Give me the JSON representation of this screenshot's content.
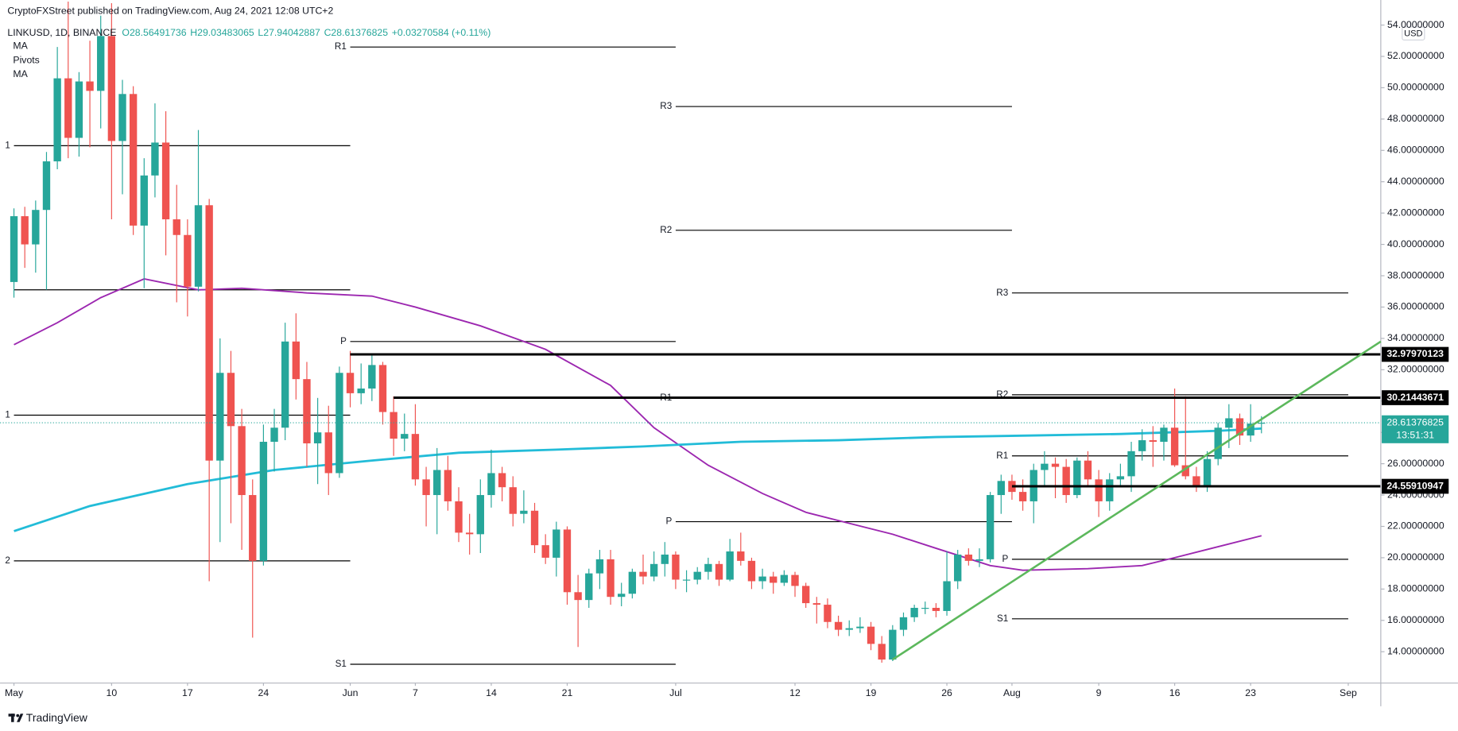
{
  "header": {
    "publisher": "CryptoFXStreet published on TradingView.com, Aug 24, 2021 12:08 UTC+2",
    "symbol": "LINKUSD, 1D, BINANCE",
    "ohlc": [
      "O28.56491736",
      "H29.03483065",
      "L27.94042887",
      "C28.61376825",
      "+0.03270584 (+0.11%)"
    ]
  },
  "footer": {
    "brand": "TradingView"
  },
  "chart_data": {
    "type": "candlestick",
    "up_color": "#26a69a",
    "down_color": "#ef5350",
    "currency": "USD",
    "xlim": [
      "2021-04-30",
      "2021-09-04"
    ],
    "ylim": [
      12,
      55.6
    ],
    "xticks": [
      {
        "value": "2021-05-01",
        "label": "May"
      },
      {
        "value": "2021-05-10",
        "label": "10"
      },
      {
        "value": "2021-05-17",
        "label": "17"
      },
      {
        "value": "2021-05-24",
        "label": "24"
      },
      {
        "value": "2021-06-01",
        "label": "Jun"
      },
      {
        "value": "2021-06-07",
        "label": "7"
      },
      {
        "value": "2021-06-14",
        "label": "14"
      },
      {
        "value": "2021-06-21",
        "label": "21"
      },
      {
        "value": "2021-07-01",
        "label": "Jul"
      },
      {
        "value": "2021-07-12",
        "label": "12"
      },
      {
        "value": "2021-07-19",
        "label": "19"
      },
      {
        "value": "2021-07-26",
        "label": "26"
      },
      {
        "value": "2021-08-01",
        "label": "Aug"
      },
      {
        "value": "2021-08-09",
        "label": "9"
      },
      {
        "value": "2021-08-16",
        "label": "16"
      },
      {
        "value": "2021-08-23",
        "label": "23"
      },
      {
        "value": "2021-09-01",
        "label": "Sep"
      }
    ],
    "yticks": [
      {
        "value": 14,
        "label": "14.00000000"
      },
      {
        "value": 16,
        "label": "16.00000000"
      },
      {
        "value": 18,
        "label": "18.00000000"
      },
      {
        "value": 20,
        "label": "20.00000000"
      },
      {
        "value": 22,
        "label": "22.00000000"
      },
      {
        "value": 24,
        "label": "24.00000000"
      },
      {
        "value": 26,
        "label": "26.00000000"
      },
      {
        "value": 28,
        "label": "28.00000000"
      },
      {
        "value": 30,
        "label": "30.00000000"
      },
      {
        "value": 32,
        "label": "32.00000000"
      },
      {
        "value": 34,
        "label": "34.00000000"
      },
      {
        "value": 36,
        "label": "36.00000000"
      },
      {
        "value": 38,
        "label": "38.00000000"
      },
      {
        "value": 40,
        "label": "40.00000000"
      },
      {
        "value": 42,
        "label": "42.00000000"
      },
      {
        "value": 44,
        "label": "44.00000000"
      },
      {
        "value": 46,
        "label": "46.00000000"
      },
      {
        "value": 48,
        "label": "48.00000000"
      },
      {
        "value": 50,
        "label": "50.00000000"
      },
      {
        "value": 52,
        "label": "52.00000000"
      },
      {
        "value": 54,
        "label": "54.00000000"
      }
    ],
    "x": [
      "2021-05-01",
      "2021-05-02",
      "2021-05-03",
      "2021-05-04",
      "2021-05-05",
      "2021-05-06",
      "2021-05-07",
      "2021-05-08",
      "2021-05-09",
      "2021-05-10",
      "2021-05-11",
      "2021-05-12",
      "2021-05-13",
      "2021-05-14",
      "2021-05-15",
      "2021-05-16",
      "2021-05-17",
      "2021-05-18",
      "2021-05-19",
      "2021-05-20",
      "2021-05-21",
      "2021-05-22",
      "2021-05-23",
      "2021-05-24",
      "2021-05-25",
      "2021-05-26",
      "2021-05-27",
      "2021-05-28",
      "2021-05-29",
      "2021-05-30",
      "2021-05-31",
      "2021-06-01",
      "2021-06-02",
      "2021-06-03",
      "2021-06-04",
      "2021-06-05",
      "2021-06-06",
      "2021-06-07",
      "2021-06-08",
      "2021-06-09",
      "2021-06-10",
      "2021-06-11",
      "2021-06-12",
      "2021-06-13",
      "2021-06-14",
      "2021-06-15",
      "2021-06-16",
      "2021-06-17",
      "2021-06-18",
      "2021-06-19",
      "2021-06-20",
      "2021-06-21",
      "2021-06-22",
      "2021-06-23",
      "2021-06-24",
      "2021-06-25",
      "2021-06-26",
      "2021-06-27",
      "2021-06-28",
      "2021-06-29",
      "2021-06-30",
      "2021-07-01",
      "2021-07-02",
      "2021-07-03",
      "2021-07-04",
      "2021-07-05",
      "2021-07-06",
      "2021-07-07",
      "2021-07-08",
      "2021-07-09",
      "2021-07-10",
      "2021-07-11",
      "2021-07-12",
      "2021-07-13",
      "2021-07-14",
      "2021-07-15",
      "2021-07-16",
      "2021-07-17",
      "2021-07-18",
      "2021-07-19",
      "2021-07-20",
      "2021-07-21",
      "2021-07-22",
      "2021-07-23",
      "2021-07-24",
      "2021-07-25",
      "2021-07-26",
      "2021-07-27",
      "2021-07-28",
      "2021-07-29",
      "2021-07-30",
      "2021-07-31",
      "2021-08-01",
      "2021-08-02",
      "2021-08-03",
      "2021-08-04",
      "2021-08-05",
      "2021-08-06",
      "2021-08-07",
      "2021-08-08",
      "2021-08-09",
      "2021-08-10",
      "2021-08-11",
      "2021-08-12",
      "2021-08-13",
      "2021-08-14",
      "2021-08-15",
      "2021-08-16",
      "2021-08-17",
      "2021-08-18",
      "2021-08-19",
      "2021-08-20",
      "2021-08-21",
      "2021-08-22",
      "2021-08-23",
      "2021-08-24"
    ],
    "ohlc": [
      [
        37.6,
        42.3,
        36.6,
        41.8
      ],
      [
        41.8,
        42.4,
        38.5,
        40.0
      ],
      [
        40.0,
        42.8,
        38.2,
        42.2
      ],
      [
        42.2,
        45.9,
        37.1,
        45.3
      ],
      [
        45.3,
        52.6,
        44.8,
        50.6
      ],
      [
        50.6,
        55.5,
        45.5,
        46.8
      ],
      [
        46.8,
        51.0,
        45.6,
        50.4
      ],
      [
        50.4,
        53.0,
        46.2,
        49.8
      ],
      [
        49.8,
        54.6,
        47.4,
        53.3
      ],
      [
        53.3,
        55.4,
        41.6,
        46.6
      ],
      [
        46.6,
        50.5,
        43.2,
        49.6
      ],
      [
        49.6,
        50.1,
        40.6,
        41.2
      ],
      [
        41.2,
        45.5,
        37.2,
        44.4
      ],
      [
        44.4,
        49.0,
        43.0,
        46.5
      ],
      [
        46.5,
        48.5,
        39.3,
        41.6
      ],
      [
        41.6,
        43.8,
        36.3,
        40.6
      ],
      [
        40.6,
        41.6,
        35.4,
        37.3
      ],
      [
        37.3,
        47.3,
        37.0,
        42.5
      ],
      [
        42.5,
        42.9,
        18.5,
        26.2
      ],
      [
        26.2,
        34.0,
        21.0,
        31.8
      ],
      [
        31.8,
        33.2,
        22.2,
        28.4
      ],
      [
        28.4,
        29.5,
        20.5,
        24.0
      ],
      [
        24.0,
        25.0,
        14.9,
        19.8
      ],
      [
        19.8,
        28.5,
        19.5,
        27.4
      ],
      [
        27.4,
        29.5,
        25.5,
        28.3
      ],
      [
        28.3,
        35.0,
        27.5,
        33.8
      ],
      [
        33.8,
        35.6,
        30.1,
        31.4
      ],
      [
        31.4,
        32.5,
        25.8,
        27.3
      ],
      [
        27.3,
        30.2,
        24.7,
        28.0
      ],
      [
        28.0,
        29.7,
        24.0,
        25.4
      ],
      [
        25.4,
        32.2,
        25.1,
        31.8
      ],
      [
        31.8,
        33.2,
        29.6,
        30.5
      ],
      [
        30.5,
        32.4,
        29.8,
        30.8
      ],
      [
        30.8,
        33.0,
        30.0,
        32.3
      ],
      [
        32.3,
        32.5,
        28.5,
        29.3
      ],
      [
        29.3,
        30.3,
        26.5,
        27.6
      ],
      [
        27.6,
        29.2,
        26.8,
        27.9
      ],
      [
        27.9,
        29.8,
        24.6,
        25.0
      ],
      [
        25.0,
        25.8,
        22.0,
        24.0
      ],
      [
        24.0,
        27.0,
        21.5,
        25.6
      ],
      [
        25.6,
        26.5,
        23.0,
        23.6
      ],
      [
        23.6,
        24.5,
        21.0,
        21.6
      ],
      [
        21.6,
        22.8,
        20.2,
        21.5
      ],
      [
        21.5,
        25.0,
        20.3,
        24.0
      ],
      [
        24.0,
        26.9,
        23.2,
        25.4
      ],
      [
        25.4,
        25.8,
        23.6,
        24.5
      ],
      [
        24.5,
        25.2,
        22.0,
        22.8
      ],
      [
        22.8,
        24.3,
        22.2,
        23.0
      ],
      [
        23.0,
        23.5,
        20.3,
        20.8
      ],
      [
        20.8,
        21.5,
        19.6,
        20.0
      ],
      [
        20.0,
        22.3,
        18.8,
        21.8
      ],
      [
        21.8,
        22.0,
        17.0,
        17.8
      ],
      [
        17.8,
        18.9,
        14.3,
        17.3
      ],
      [
        17.3,
        19.3,
        16.8,
        19.0
      ],
      [
        19.0,
        20.5,
        18.0,
        19.9
      ],
      [
        19.9,
        20.5,
        17.0,
        17.5
      ],
      [
        17.5,
        18.4,
        16.9,
        17.7
      ],
      [
        17.7,
        19.3,
        17.4,
        19.1
      ],
      [
        19.1,
        20.2,
        18.3,
        18.8
      ],
      [
        18.8,
        20.4,
        18.5,
        19.6
      ],
      [
        19.6,
        21.0,
        18.8,
        20.2
      ],
      [
        20.2,
        20.4,
        18.0,
        18.6
      ],
      [
        18.6,
        19.2,
        17.8,
        18.6
      ],
      [
        18.6,
        19.4,
        18.3,
        19.1
      ],
      [
        19.1,
        20.0,
        18.6,
        19.6
      ],
      [
        19.6,
        19.8,
        18.2,
        18.6
      ],
      [
        18.6,
        21.2,
        18.5,
        20.4
      ],
      [
        20.4,
        21.6,
        19.5,
        19.8
      ],
      [
        19.8,
        20.0,
        18.0,
        18.5
      ],
      [
        18.5,
        19.3,
        18.0,
        18.8
      ],
      [
        18.8,
        19.1,
        17.7,
        18.4
      ],
      [
        18.4,
        19.2,
        18.2,
        18.9
      ],
      [
        18.9,
        19.1,
        17.5,
        18.2
      ],
      [
        18.2,
        18.4,
        16.8,
        17.1
      ],
      [
        17.1,
        17.5,
        15.8,
        17.0
      ],
      [
        17.0,
        17.4,
        15.5,
        15.9
      ],
      [
        15.9,
        16.3,
        15.0,
        15.4
      ],
      [
        15.4,
        16.0,
        15.0,
        15.5
      ],
      [
        15.5,
        16.2,
        15.2,
        15.6
      ],
      [
        15.6,
        15.9,
        14.1,
        14.5
      ],
      [
        14.5,
        15.0,
        13.3,
        13.5
      ],
      [
        13.5,
        15.7,
        13.4,
        15.4
      ],
      [
        15.4,
        16.5,
        15.0,
        16.2
      ],
      [
        16.2,
        17.0,
        15.9,
        16.8
      ],
      [
        16.8,
        17.2,
        16.4,
        16.8
      ],
      [
        16.8,
        17.1,
        16.2,
        16.6
      ],
      [
        16.6,
        20.4,
        16.3,
        18.5
      ],
      [
        18.5,
        20.5,
        18.0,
        20.2
      ],
      [
        20.2,
        20.6,
        19.5,
        19.8
      ],
      [
        19.8,
        20.6,
        19.4,
        19.9
      ],
      [
        19.9,
        24.2,
        19.7,
        24.0
      ],
      [
        24.0,
        25.3,
        22.8,
        24.9
      ],
      [
        24.9,
        25.3,
        23.7,
        24.2
      ],
      [
        24.2,
        25.0,
        23.0,
        23.6
      ],
      [
        23.6,
        26.0,
        22.2,
        25.6
      ],
      [
        25.6,
        26.8,
        24.6,
        26.0
      ],
      [
        26.0,
        26.4,
        23.8,
        25.8
      ],
      [
        25.8,
        26.3,
        23.5,
        24.0
      ],
      [
        24.0,
        26.4,
        23.8,
        26.2
      ],
      [
        26.2,
        26.8,
        24.6,
        25.0
      ],
      [
        25.0,
        25.6,
        22.6,
        23.6
      ],
      [
        23.6,
        25.4,
        23.0,
        25.0
      ],
      [
        25.0,
        26.0,
        24.5,
        25.2
      ],
      [
        25.2,
        27.4,
        24.2,
        26.8
      ],
      [
        26.8,
        28.2,
        26.2,
        27.5
      ],
      [
        27.5,
        28.4,
        25.8,
        27.4
      ],
      [
        27.4,
        28.5,
        26.2,
        28.3
      ],
      [
        28.3,
        30.8,
        25.8,
        25.9
      ],
      [
        25.9,
        30.3,
        25.0,
        25.2
      ],
      [
        25.2,
        25.8,
        24.2,
        24.5
      ],
      [
        24.5,
        26.8,
        24.2,
        26.3
      ],
      [
        26.3,
        28.6,
        25.9,
        28.3
      ],
      [
        28.3,
        29.8,
        27.0,
        28.9
      ],
      [
        28.9,
        29.2,
        27.2,
        27.8
      ],
      [
        27.8,
        29.8,
        27.4,
        28.56
      ],
      [
        28.56,
        29.03483065,
        27.94042887,
        28.61376825
      ]
    ],
    "moving_averages": [
      {
        "name": "MA",
        "color": "#9c27b0",
        "x": [
          "2021-05-01",
          "2021-05-05",
          "2021-05-09",
          "2021-05-13",
          "2021-05-18",
          "2021-05-22",
          "2021-05-28",
          "2021-06-03",
          "2021-06-07",
          "2021-06-13",
          "2021-06-19",
          "2021-06-25",
          "2021-06-29",
          "2021-07-04",
          "2021-07-09",
          "2021-07-13",
          "2021-07-17",
          "2021-07-21",
          "2021-07-25",
          "2021-07-30",
          "2021-08-02",
          "2021-08-08",
          "2021-08-13",
          "2021-08-16",
          "2021-08-20",
          "2021-08-24"
        ],
        "values": [
          33.6,
          35.0,
          36.6,
          37.8,
          37.1,
          37.2,
          36.9,
          36.7,
          36.0,
          34.8,
          33.3,
          31.0,
          28.3,
          25.9,
          24.1,
          22.9,
          22.2,
          21.5,
          20.6,
          19.5,
          19.2,
          19.3,
          19.5,
          20.0,
          20.7,
          21.4
        ]
      },
      {
        "name": "MA",
        "color": "#22bcd8",
        "x": [
          "2021-05-01",
          "2021-05-08",
          "2021-05-17",
          "2021-05-25",
          "2021-06-03",
          "2021-06-11",
          "2021-06-20",
          "2021-06-28",
          "2021-07-07",
          "2021-07-16",
          "2021-07-25",
          "2021-08-03",
          "2021-08-11",
          "2021-08-20",
          "2021-08-24"
        ],
        "values": [
          21.7,
          23.3,
          24.7,
          25.6,
          26.2,
          26.7,
          26.9,
          27.1,
          27.4,
          27.5,
          27.7,
          27.8,
          27.9,
          28.1,
          28.25
        ]
      }
    ],
    "pivots": {
      "name": "Pivots",
      "color": "#000000",
      "periods": [
        {
          "start": "2021-05-01",
          "end": "2021-06-01",
          "levels": [
            {
              "label": "1",
              "value": 46.3
            },
            {
              "value": 37.1
            },
            {
              "label": "1",
              "value": 29.1
            },
            {
              "label": "2",
              "value": 19.8
            }
          ]
        },
        {
          "start": "2021-06-01",
          "end": "2021-07-01",
          "levels": [
            {
              "label": "R1",
              "value": 52.6
            },
            {
              "label": "P",
              "value": 33.8
            },
            {
              "label": "S1",
              "value": 13.2
            }
          ]
        },
        {
          "start": "2021-07-01",
          "end": "2021-08-01",
          "levels": [
            {
              "label": "R3",
              "value": 48.8
            },
            {
              "label": "R2",
              "value": 40.9
            },
            {
              "label": "R1",
              "value": 30.2
            },
            {
              "label": "P",
              "value": 22.3
            }
          ]
        },
        {
          "start": "2021-08-01",
          "end": "2021-09-01",
          "levels": [
            {
              "label": "R3",
              "value": 36.9
            },
            {
              "label": "R2",
              "value": 30.4
            },
            {
              "label": "R1",
              "value": 26.5
            },
            {
              "label": "P",
              "value": 19.9
            },
            {
              "label": "S1",
              "value": 16.1
            }
          ]
        }
      ]
    },
    "levels": [
      {
        "value": 32.97970123,
        "start": "2021-06-01"
      },
      {
        "value": 30.21443671,
        "start": "2021-06-05"
      },
      {
        "value": 24.55910947,
        "start": "2021-08-01"
      }
    ],
    "trendline": {
      "color": "#5cb85c",
      "points": [
        [
          "2021-07-21",
          13.5
        ],
        [
          "2021-09-04",
          33.8
        ]
      ]
    },
    "last_price": {
      "value": 28.61376825,
      "countdown": "13:51:31",
      "color": "#26a69a"
    }
  }
}
